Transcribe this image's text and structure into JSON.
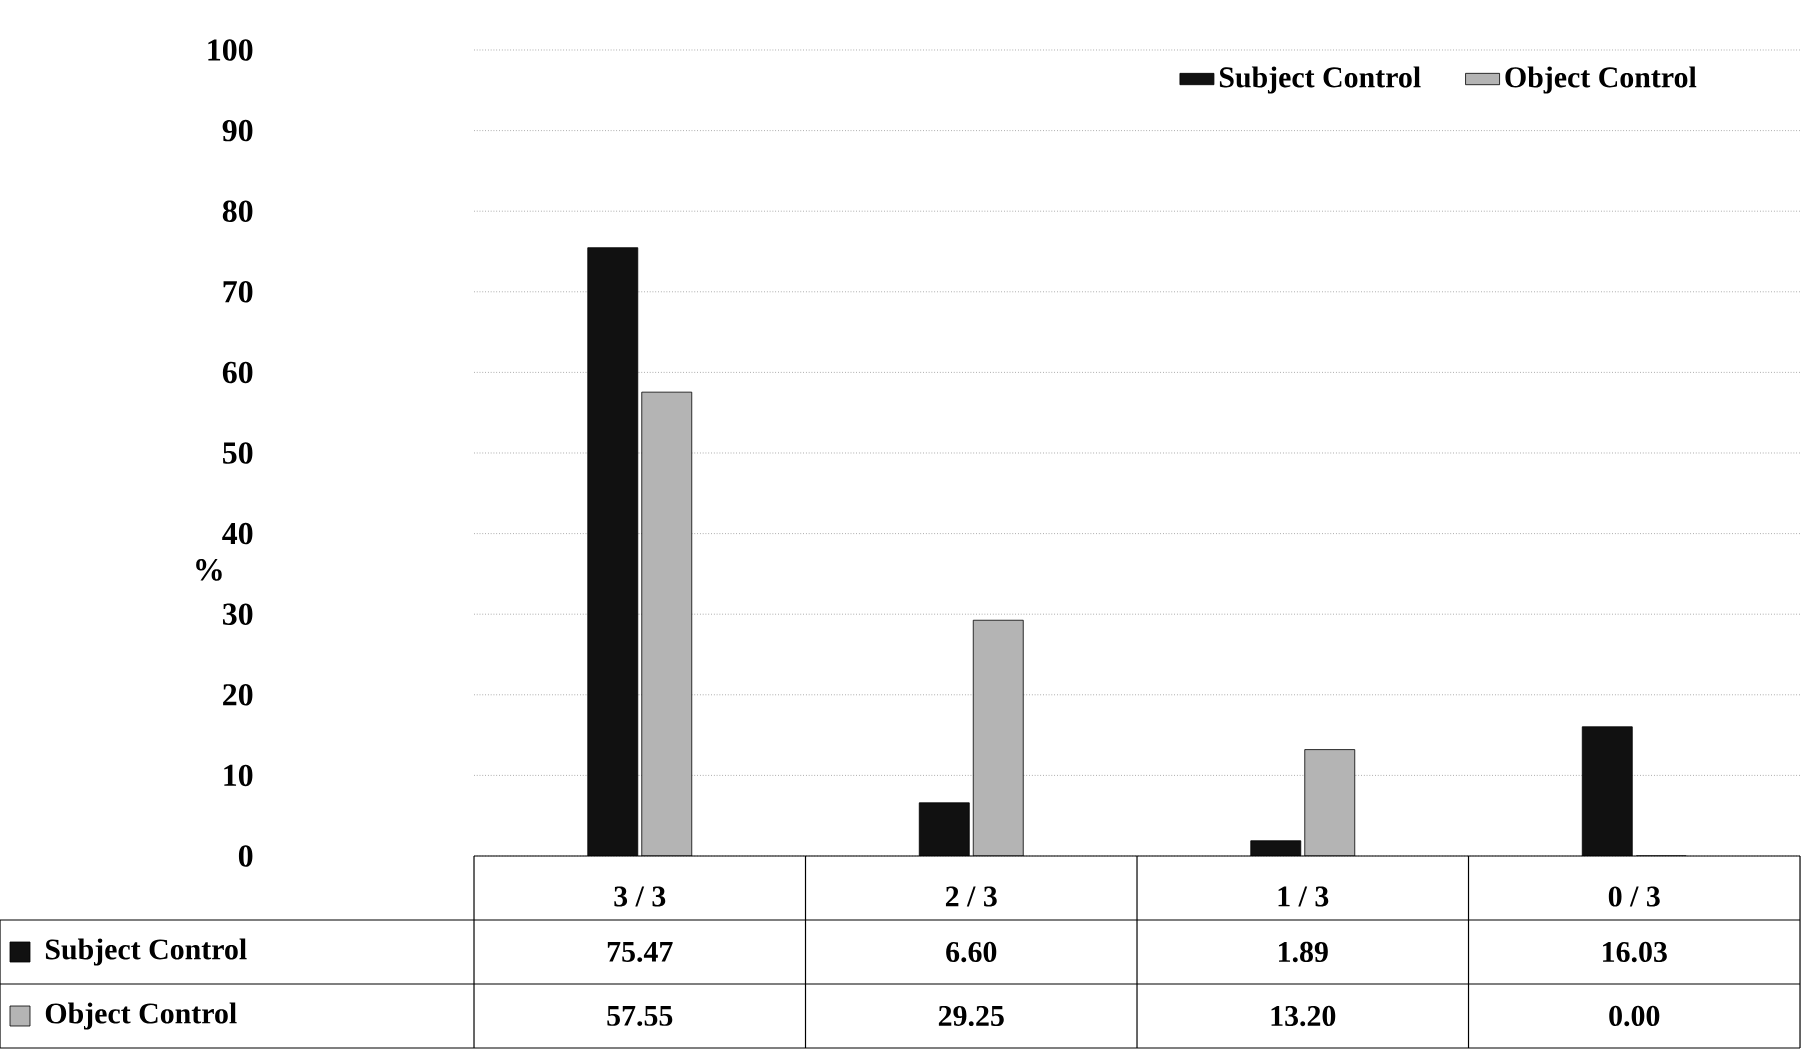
{
  "chart_data": {
    "type": "bar",
    "ylabel": "%",
    "categories": [
      "3 / 3",
      "2 / 3",
      "1 / 3",
      "0 / 3"
    ],
    "series": [
      {
        "name": "Subject Control",
        "color": "#111111",
        "values": [
          75.47,
          6.6,
          1.89,
          16.03
        ],
        "value_labels": [
          "75.47",
          "6.60",
          "1.89",
          "16.03"
        ]
      },
      {
        "name": "Object Control",
        "color": "#b4b4b4",
        "values": [
          57.55,
          29.25,
          13.2,
          0.0
        ],
        "value_labels": [
          "57.55",
          "29.25",
          "13.20",
          "0.00"
        ]
      }
    ],
    "ylim": [
      0,
      100
    ],
    "yticks": [
      0,
      10,
      20,
      30,
      40,
      50,
      60,
      70,
      80,
      90,
      100
    ],
    "grid": "y",
    "legend": "top right"
  }
}
